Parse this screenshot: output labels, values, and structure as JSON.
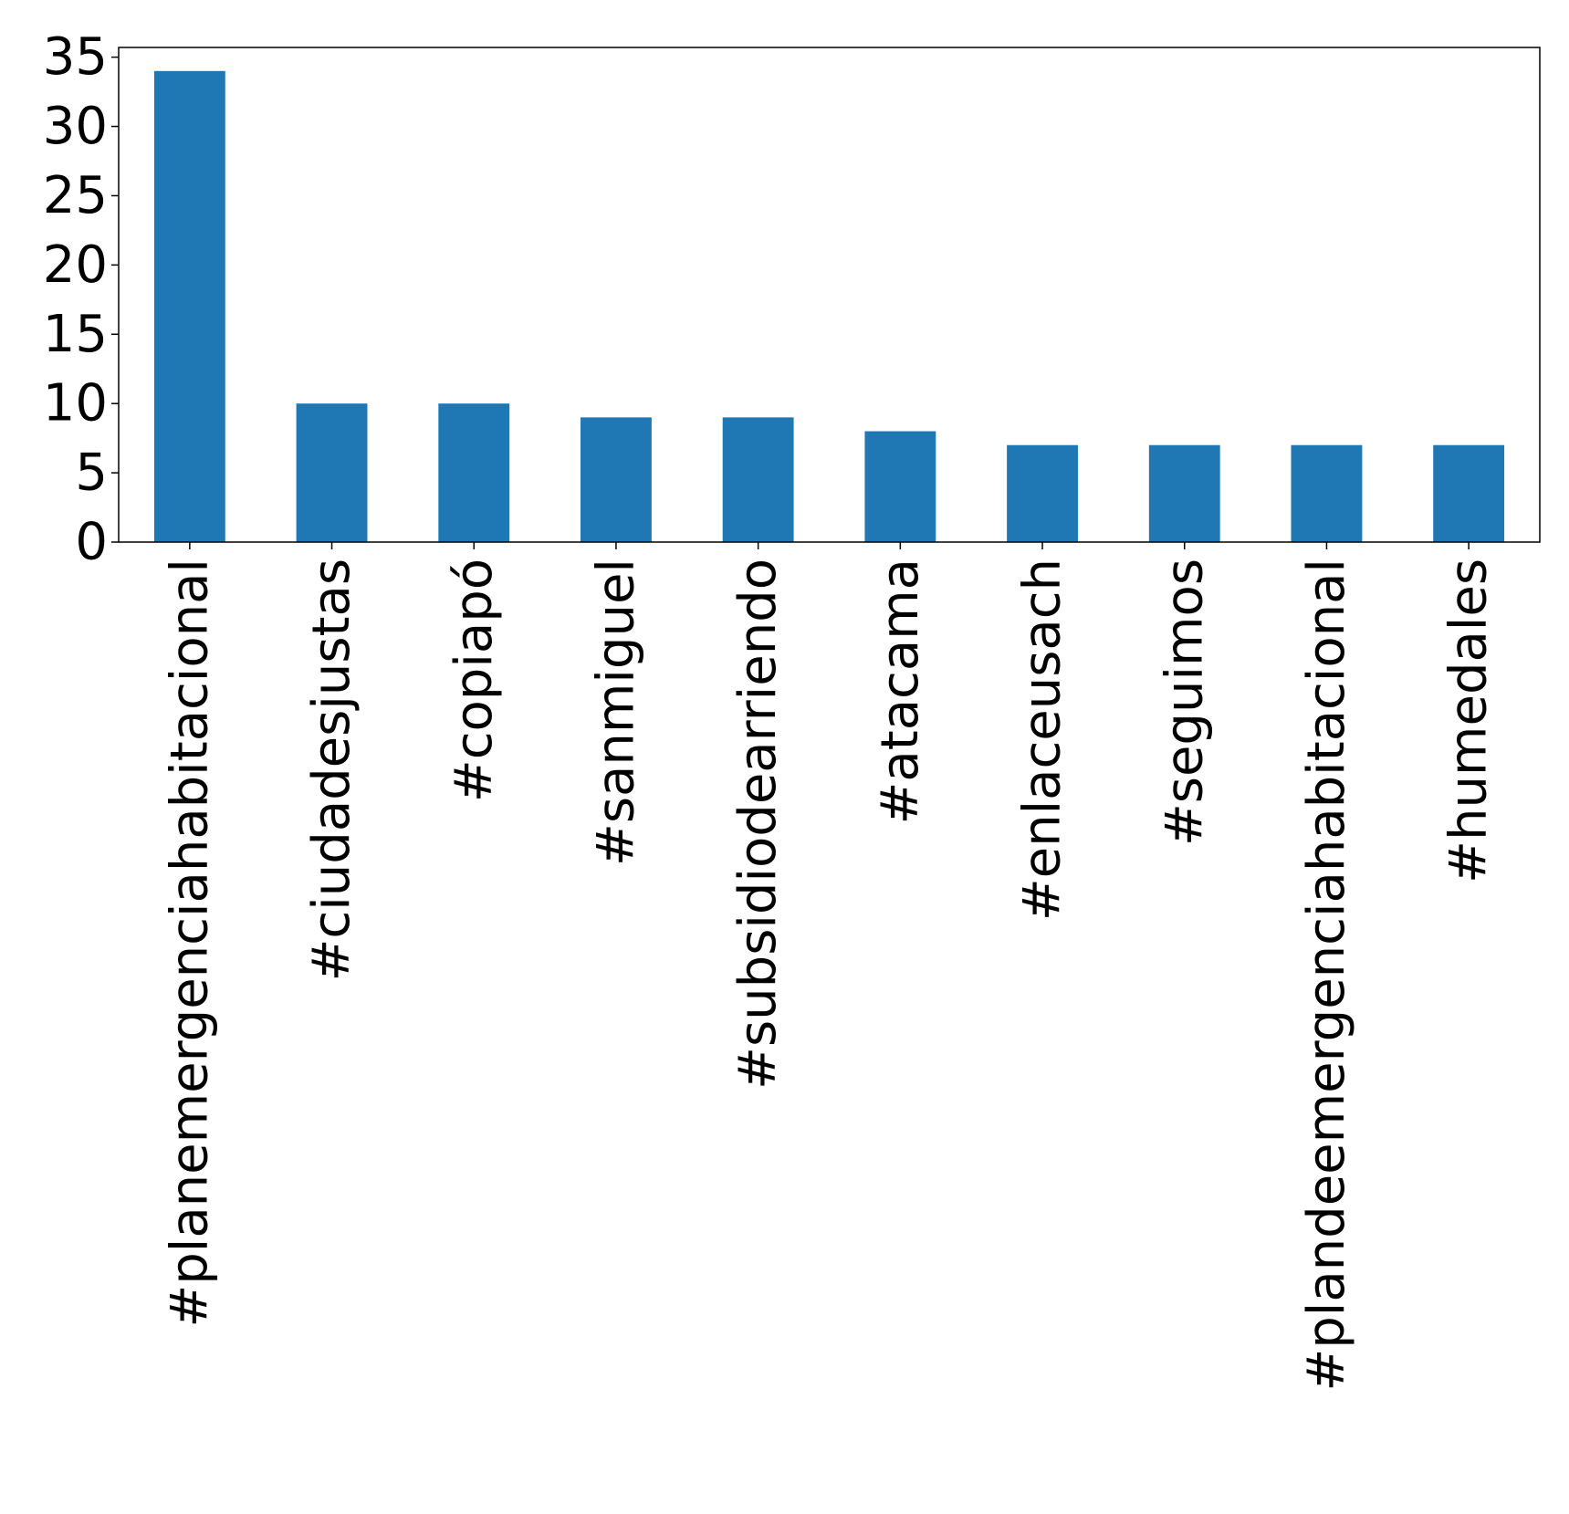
{
  "chart_data": {
    "type": "bar",
    "title": "",
    "xlabel": "",
    "ylabel": "",
    "categories": [
      "#planemergenciahabitacional",
      "#ciudadesjustas",
      "#copiapó",
      "#sanmiguel",
      "#subsidiodearriendo",
      "#atacama",
      "#enlaceusach",
      "#seguimos",
      "#plandeemergenciahabitacional",
      "#humedales"
    ],
    "values": [
      34,
      10,
      10,
      9,
      9,
      8,
      7,
      7,
      7,
      7
    ],
    "ylim": [
      0,
      35.7
    ],
    "yticks": [
      "0",
      "5",
      "10",
      "15",
      "20",
      "25",
      "30",
      "35"
    ],
    "grid": false,
    "legend": false,
    "bar_color": "#1f77b4"
  }
}
